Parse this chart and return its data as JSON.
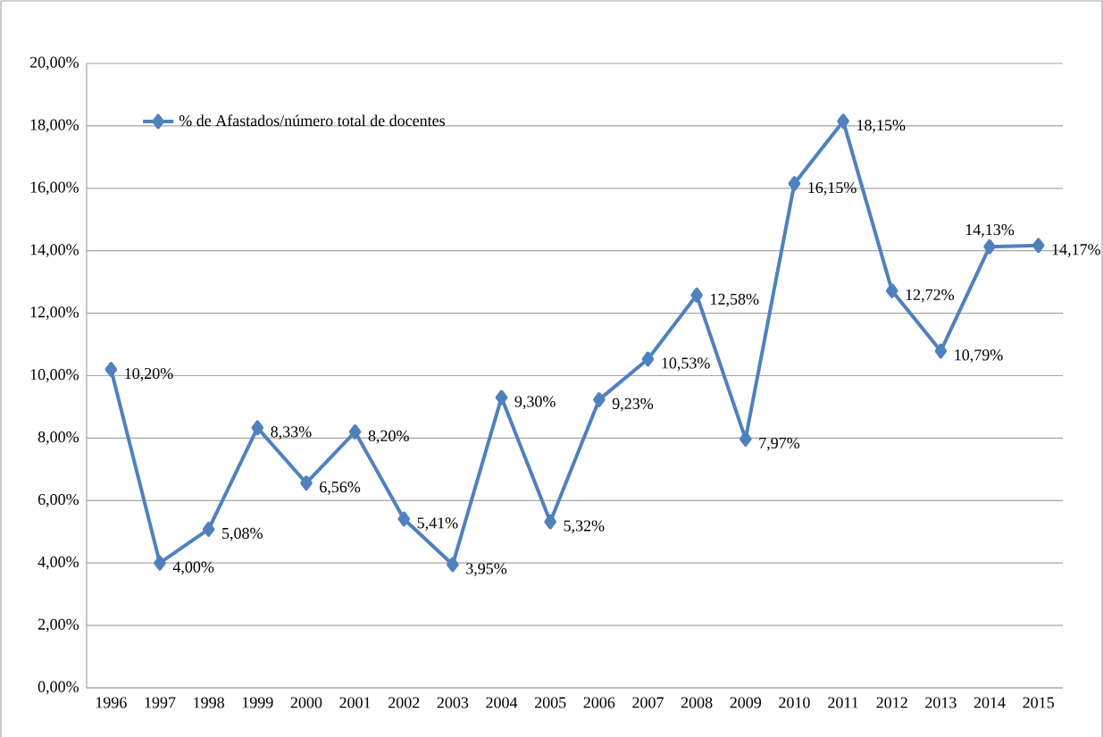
{
  "chart_data": {
    "type": "line",
    "categories": [
      "1996",
      "1997",
      "1998",
      "1999",
      "2000",
      "2001",
      "2002",
      "2003",
      "2004",
      "2005",
      "2006",
      "2007",
      "2008",
      "2009",
      "2010",
      "2011",
      "2012",
      "2013",
      "2014",
      "2015"
    ],
    "series": [
      {
        "name": "% de Afastados/número total de docentes",
        "color": "#4f81bd",
        "values": [
          10.2,
          4.0,
          5.08,
          8.33,
          6.56,
          8.2,
          5.41,
          3.95,
          9.3,
          5.32,
          9.23,
          10.53,
          12.58,
          7.97,
          16.15,
          18.15,
          12.72,
          10.79,
          14.13,
          14.17
        ],
        "value_labels": [
          "10,20%",
          "4,00%",
          "5,08%",
          "8,33%",
          "6,56%",
          "8,20%",
          "5,41%",
          "3,95%",
          "9,30%",
          "5,32%",
          "9,23%",
          "10,53%",
          "12,58%",
          "7,97%",
          "16,15%",
          "18,15%",
          "12,72%",
          "10,79%",
          "14,13%",
          "14,17%"
        ]
      }
    ],
    "ylim": [
      0,
      20
    ],
    "yticks": [
      {
        "value": 0,
        "label": "0,00%"
      },
      {
        "value": 2,
        "label": "2,00%"
      },
      {
        "value": 4,
        "label": "4,00%"
      },
      {
        "value": 6,
        "label": "6,00%"
      },
      {
        "value": 8,
        "label": "8,00%"
      },
      {
        "value": 10,
        "label": "10,00%"
      },
      {
        "value": 12,
        "label": "12,00%"
      },
      {
        "value": 14,
        "label": "14,00%"
      },
      {
        "value": 16,
        "label": "16,00%"
      },
      {
        "value": 18,
        "label": "18,00%"
      },
      {
        "value": 20,
        "label": "20,00%"
      }
    ],
    "grid": "y",
    "legend": "top left",
    "marker": "diamond",
    "line_style": "solid"
  }
}
